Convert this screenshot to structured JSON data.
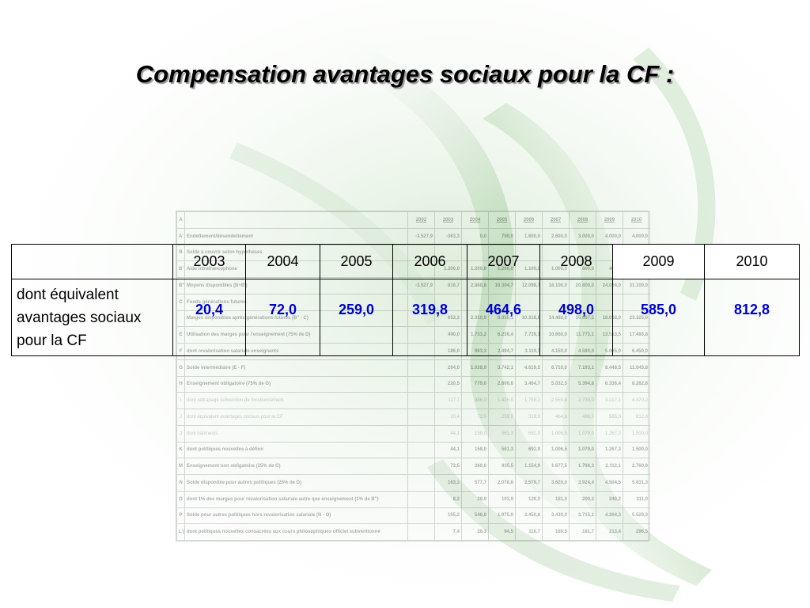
{
  "slide": {
    "title": "Compensation avantages sociaux pour la CF :"
  },
  "main_table": {
    "years": [
      "2003",
      "2004",
      "2005",
      "2006",
      "2007",
      "2008",
      "2009",
      "2010"
    ],
    "row_label": "dont équivalent avantages sociaux pour la CF",
    "values": [
      "20,4",
      "72,0",
      "259,0",
      "319,8",
      "464,6",
      "498,0",
      "585,0",
      "812,8"
    ],
    "value_color": "#0000cc"
  },
  "background_sheet": {
    "header": [
      "2002",
      "2003",
      "2004",
      "2005",
      "2006",
      "2007",
      "2008",
      "2009",
      "2010"
    ],
    "rows": [
      {
        "code": "A'",
        "label": "Endettement/désendettement",
        "values": [
          "-3.527,9",
          "-363,3",
          "0,0",
          "700,0",
          "1.600,0",
          "2.600,0",
          "3.000,0",
          "4.000,0",
          "4.000,0"
        ]
      },
      {
        "code": "B",
        "label": "Solde à couvrir selon hypothèses",
        "values": [
          "",
          "",
          "",
          "",
          "",
          "",
          "",
          "",
          ""
        ]
      },
      {
        "code": "B'",
        "label": "Aide intrafrancophone",
        "values": [
          "",
          "1.200,0",
          "1.200,0",
          "1.200,0",
          "1.100,0",
          "1.000,0",
          "800,0",
          "400,0",
          "0,0"
        ]
      },
      {
        "code": "B\"",
        "label": "Moyens disponibles (B+B')",
        "values": [
          "-3.527,9",
          "816,7",
          "2.888,8",
          "10.304,7",
          "12.098,7",
          "18.100,0",
          "20.800,0",
          "24.024,0",
          "31.100,0"
        ]
      },
      {
        "code": "C",
        "label": "Fonds générations futures",
        "values": [
          "",
          "",
          "",
          "",
          "",
          "",
          "",
          "",
          ""
        ]
      },
      {
        "code": "",
        "label": "Marges disponibles après générations futures (B\" - C)",
        "values": [
          "",
          "653,3",
          "2.310,9",
          "8.315,1",
          "10.318,8",
          "14.480,0",
          "15.687,5",
          "18.018,0",
          "23.325,0"
        ]
      },
      {
        "code": "E",
        "label": "Utilisation des marges pour l'enseignement (75% de D)",
        "values": [
          "",
          "490,0",
          "1.733,2",
          "6.236,4",
          "7.739,1",
          "10.860,0",
          "11.773,1",
          "13.513,5",
          "17.493,8"
        ]
      },
      {
        "code": "F",
        "label": "dont revalorisation salariale enseignants",
        "values": [
          "",
          "186,0",
          "863,3",
          "2.494,7",
          "3.119,7",
          "4.150,0",
          "4.580,0",
          "5.065,0",
          "6.450,0"
        ]
      },
      {
        "code": "G",
        "label": "Solde intermédiaire (E - F)",
        "values": [
          "",
          "294,0",
          "1.038,9",
          "3.742,1",
          "4.619,5",
          "6.710,0",
          "7.193,1",
          "8.448,5",
          "11.043,8"
        ]
      },
      {
        "code": "H",
        "label": "Enseignement obligatoire (75% de G)",
        "values": [
          "",
          "220,5",
          "779,0",
          "2.806,6",
          "3.464,7",
          "5.032,5",
          "5.394,8",
          "6.336,4",
          "8.282,8"
        ]
      },
      {
        "code": "I",
        "label": "dont rattrapage subvention de fonctionnement",
        "values": [
          "",
          "117,7",
          "386,0",
          "1.425,0",
          "1.759,2",
          "2.555,4",
          "2.739,0",
          "3.217,1",
          "4.470,2"
        ],
        "faint": true
      },
      {
        "code": "J",
        "label": "dont équivalent avantages sociaux pour la CF",
        "values": [
          "",
          "20,4",
          "72,0",
          "259,0",
          "319,8",
          "464,6",
          "498,0",
          "585,0",
          "812,8"
        ],
        "faint": true
      },
      {
        "code": "J",
        "label": "dont bâtiments",
        "values": [
          "",
          "44,1",
          "158,0",
          "561,3",
          "692,9",
          "1.006,5",
          "1.079,0",
          "1.267,3",
          "1.500,0"
        ],
        "faint": true
      },
      {
        "code": "K",
        "label": "dont politiques nouvelles à définir",
        "values": [
          "",
          "44,1",
          "158,0",
          "561,3",
          "692,9",
          "1.006,5",
          "1.079,0",
          "1.267,3",
          "1.500,0"
        ]
      },
      {
        "code": "M",
        "label": "Enseignement non obligatoire (25% de G)",
        "values": [
          "",
          "73,5",
          "260,0",
          "935,5",
          "1.154,9",
          "1.677,5",
          "1.798,3",
          "2.112,1",
          "2.760,9"
        ]
      },
      {
        "code": "N",
        "label": "Solde disponible pour autres politiques (25% de D)",
        "values": [
          "",
          "163,3",
          "577,7",
          "2.078,8",
          "2.579,7",
          "3.620,0",
          "3.924,4",
          "4.504,5",
          "5.831,3"
        ]
      },
      {
        "code": "O",
        "label": "dont 1% des marges pour revalorisation salariale autre que enseignement (1% de B\")",
        "values": [
          "",
          "8,2",
          "28,9",
          "103,9",
          "129,0",
          "181,0",
          "200,3",
          "240,2",
          "311,0"
        ]
      },
      {
        "code": "P",
        "label": "Solde pour autres politiques hors revalorisation salariale (N - O)",
        "values": [
          "",
          "155,2",
          "548,8",
          "1.975,0",
          "2.450,8",
          "3.439,0",
          "3.715,1",
          "4.264,3",
          "5.520,3"
        ]
      },
      {
        "code": "L'(*)",
        "label": "dont politiques nouvelles consacrées aux cours philosophiques officiel subventionné",
        "values": [
          "",
          "7,4",
          "26,3",
          "94,5",
          "116,7",
          "169,5",
          "181,7",
          "213,4",
          "296,5"
        ]
      }
    ]
  },
  "colors": {
    "title_shadow": "#9a9a9a",
    "value_blue": "#0000cc",
    "swoosh_green": "#a9cfa4"
  }
}
